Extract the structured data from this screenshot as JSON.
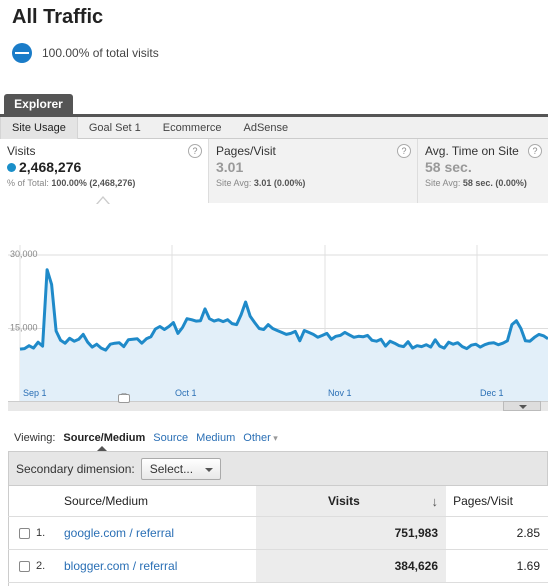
{
  "page": {
    "title": "All Traffic",
    "segment_label": "100.00% of total visits"
  },
  "explorer": {
    "tab_label": "Explorer",
    "subtabs": [
      "Site Usage",
      "Goal Set 1",
      "Ecommerce",
      "AdSense"
    ]
  },
  "metrics": [
    {
      "label": "Visits",
      "value": "2,468,276",
      "sub_prefix": "% of Total: ",
      "sub_bold": "100.00% (2,468,276)",
      "help": "?"
    },
    {
      "label": "Pages/Visit",
      "value": "3.01",
      "sub_prefix": "Site Avg: ",
      "sub_bold": "3.01 (0.00%)",
      "help": "?"
    },
    {
      "label": "Avg. Time on Site",
      "value": "58 sec.",
      "sub_prefix": "Site Avg: ",
      "sub_bold": "58 sec. (0.00%)",
      "help": "?"
    }
  ],
  "chart_data": {
    "type": "area",
    "series": [
      {
        "values": [
          10800,
          10900,
          11500,
          11000,
          12200,
          11400,
          27000,
          24000,
          14500,
          12600,
          12000,
          13000,
          12400,
          12800,
          13800,
          12200,
          11200,
          11800,
          11000,
          10600,
          11800,
          12000,
          12100,
          11300,
          12700,
          12800,
          12900,
          12000,
          12900,
          13300,
          14900,
          15400,
          14800,
          15400,
          16200,
          14000,
          15200,
          17000,
          16800,
          16500,
          16600,
          19000,
          17000,
          16500,
          16800,
          16400,
          16800,
          16000,
          15800,
          17800,
          20400,
          17500,
          16200,
          15000,
          14800,
          15800,
          15000,
          14600,
          14200,
          13800,
          14000,
          14400,
          12500,
          14600,
          14200,
          13800,
          13200,
          13600,
          14000,
          12800,
          13400,
          13600,
          14200,
          13700,
          13200,
          13400,
          13300,
          13600,
          12600,
          12400,
          12800,
          11400,
          12400,
          12000,
          11500,
          11300,
          12300,
          11000,
          11500,
          11300,
          11700,
          11200,
          12700,
          11400,
          11000,
          12200,
          11800,
          12100,
          11300,
          10900,
          11600,
          11800,
          11200,
          11700,
          12000,
          12100,
          11700,
          12000,
          12500,
          15800,
          16600,
          15000,
          12500,
          12400,
          13200,
          13800,
          13500,
          12900
        ]
      }
    ],
    "y_ticks": [
      "30,000",
      "15,000"
    ],
    "x_ticks": [
      "Sep 1",
      "Oct 1",
      "Nov 1",
      "Dec 1"
    ],
    "ylim": [
      0,
      30000
    ],
    "grid": true,
    "colors": {
      "line": "#1f8ac9",
      "fill": "#e2eff9"
    }
  },
  "viewing": {
    "label": "Viewing:",
    "active": "Source/Medium",
    "links": [
      "Source",
      "Medium"
    ],
    "other": "Other"
  },
  "secondary": {
    "label": "Secondary dimension:",
    "select_label": "Select..."
  },
  "table": {
    "headers": {
      "source": "Source/Medium",
      "visits": "Visits",
      "sort": "↓",
      "pages": "Pages/Visit"
    },
    "rows": [
      {
        "num": "1.",
        "source": "google.com / referral",
        "visits": "751,983",
        "pages": "2.85"
      },
      {
        "num": "2.",
        "source": "blogger.com / referral",
        "visits": "384,626",
        "pages": "1.69"
      }
    ]
  }
}
